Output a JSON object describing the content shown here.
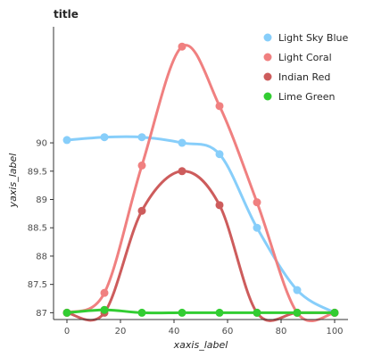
{
  "chart_data": {
    "type": "line",
    "title": "title",
    "xlabel": "xaxis_label",
    "ylabel": "yaxis_label",
    "xlim": [
      -5,
      105
    ],
    "ylim": [
      86.88,
      92.05
    ],
    "x_ticks": [
      0,
      20,
      40,
      60,
      80,
      100
    ],
    "y_ticks": [
      87,
      87.5,
      88,
      88.5,
      89,
      89.5,
      90
    ],
    "x_tick_labels": [
      "0",
      "20",
      "40",
      "60",
      "80",
      "100"
    ],
    "y_tick_labels": [
      "87",
      "87.5",
      "88",
      "88.5",
      "89",
      "89.5",
      "90"
    ],
    "grid": false,
    "legend_position": "top-right",
    "series": [
      {
        "name": "Light Coral",
        "color": "#F08080",
        "x": [
          0,
          14,
          28,
          43,
          57,
          71,
          86,
          100
        ],
        "y": [
          87.0,
          87.35,
          89.6,
          91.7,
          90.65,
          88.95,
          87.0,
          87.0
        ]
      },
      {
        "name": "Light Sky Blue",
        "color": "#87CEFA",
        "x": [
          0,
          14,
          28,
          43,
          57,
          71,
          86,
          100
        ],
        "y": [
          90.05,
          90.1,
          90.1,
          90.0,
          89.8,
          88.5,
          87.4,
          87.0
        ]
      },
      {
        "name": "Indian Red",
        "color": "#CD5C5C",
        "x": [
          0,
          14,
          28,
          43,
          57,
          71,
          86,
          100
        ],
        "y": [
          87.0,
          87.0,
          88.8,
          89.5,
          88.9,
          87.0,
          87.0,
          87.0
        ]
      },
      {
        "name": "Lime Green",
        "color": "#32CD32",
        "x": [
          0,
          14,
          28,
          43,
          57,
          71,
          86,
          100
        ],
        "y": [
          87.0,
          87.05,
          87.0,
          87.0,
          87.0,
          87.0,
          87.0,
          87.0
        ]
      }
    ]
  }
}
